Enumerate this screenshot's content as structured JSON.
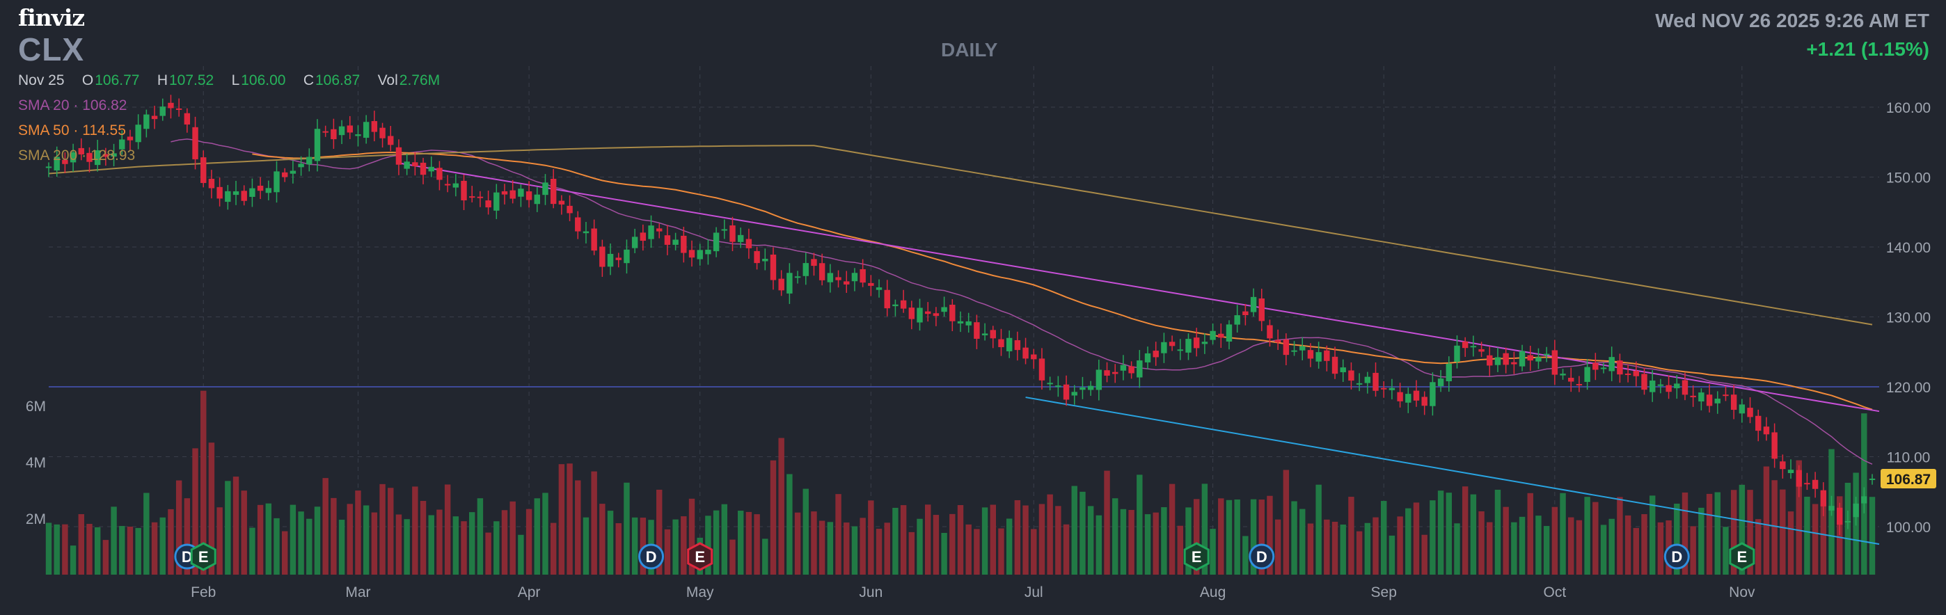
{
  "header": {
    "logo": "finviz",
    "ticker": "CLX",
    "timeframe": "DAILY",
    "datetime": "Wed NOV 26 2025 9:26 AM ET",
    "change": "+1.21 (1.15%)"
  },
  "ohlc": {
    "date": "Nov 25",
    "open_label": "O",
    "open": "106.77",
    "high_label": "H",
    "high": "107.52",
    "low_label": "L",
    "low": "106.00",
    "close_label": "C",
    "close": "106.87",
    "vol_label": "Vol",
    "vol": "2.76M"
  },
  "indicators": {
    "sma20": {
      "label": "SMA 20",
      "value": "106.82",
      "color": "#a34fa0"
    },
    "sma50": {
      "label": "SMA 50",
      "value": "114.55",
      "color": "#f08a3a"
    },
    "sma200": {
      "label": "SMA 200",
      "value": "128.93",
      "color": "#a98a48"
    }
  },
  "chart_data": {
    "type": "candlestick",
    "price_axis": {
      "ticks": [
        100,
        110,
        120,
        130,
        140,
        150,
        160
      ],
      "tick_labels": [
        "100.00",
        "110.00",
        "120.00",
        "130.00",
        "140.00",
        "150.00",
        "160.00"
      ],
      "range": [
        95,
        164
      ]
    },
    "volume_axis": {
      "ticks": [
        2,
        4,
        6
      ],
      "tick_labels": [
        "2M",
        "4M",
        "6M"
      ],
      "unit": "M"
    },
    "months": [
      "Feb",
      "Mar",
      "Apr",
      "May",
      "Jun",
      "Jul",
      "Aug",
      "Sep",
      "Oct",
      "Nov"
    ],
    "last_price_label": "106.87",
    "horizontal_line": 120,
    "anchors": [
      [
        "2025-01-06",
        151.5,
        1.6
      ],
      [
        "2025-01-17",
        154.5,
        1.8
      ],
      [
        "2025-01-24",
        159,
        2.2
      ],
      [
        "2025-01-29",
        161,
        2.5
      ],
      [
        "2025-02-03",
        149,
        6.0
      ],
      [
        "2025-02-04",
        147,
        3.8
      ],
      [
        "2025-02-12",
        148.5,
        2.2
      ],
      [
        "2025-02-20",
        151,
        2.0
      ],
      [
        "2025-02-24",
        157,
        2.8
      ],
      [
        "2025-03-03",
        156,
        2.4
      ],
      [
        "2025-03-05",
        157,
        2.9
      ],
      [
        "2025-03-11",
        152,
        2.4
      ],
      [
        "2025-03-14",
        150,
        2.6
      ],
      [
        "2025-03-25",
        146.5,
        2.0
      ],
      [
        "2025-04-01",
        147.5,
        2.2
      ],
      [
        "2025-04-03",
        149,
        2.6
      ],
      [
        "2025-04-08",
        144,
        3.6
      ],
      [
        "2025-04-14",
        138,
        2.5
      ],
      [
        "2025-04-23",
        142,
        2.2
      ],
      [
        "2025-05-01",
        139,
        2.0
      ],
      [
        "2025-05-05",
        141.5,
        2.1
      ],
      [
        "2025-05-08",
        141,
        2.0
      ],
      [
        "2025-05-13",
        138,
        2.0
      ],
      [
        "2025-05-15",
        134,
        4.5
      ],
      [
        "2025-05-20",
        137,
        2.3
      ],
      [
        "2025-05-30",
        135,
        2.0
      ],
      [
        "2025-06-04",
        132,
        2.1
      ],
      [
        "2025-06-18",
        129,
        2.0
      ],
      [
        "2025-06-27",
        125,
        2.2
      ],
      [
        "2025-07-03",
        121,
        2.4
      ],
      [
        "2025-07-09",
        118.5,
        2.6
      ],
      [
        "2025-07-15",
        122,
        2.8
      ],
      [
        "2025-07-25",
        125.5,
        2.4
      ],
      [
        "2025-08-01",
        127.5,
        2.6
      ],
      [
        "2025-08-05",
        128,
        2.4
      ],
      [
        "2025-08-08",
        132,
        2.2
      ],
      [
        "2025-08-13",
        126,
        3.0
      ],
      [
        "2025-08-15",
        125,
        2.6
      ],
      [
        "2025-08-20",
        124,
        2.3
      ],
      [
        "2025-08-25",
        122.5,
        2.0
      ],
      [
        "2025-09-02",
        119,
        2.0
      ],
      [
        "2025-09-09",
        118.5,
        2.2
      ],
      [
        "2025-09-12",
        123,
        2.8
      ],
      [
        "2025-09-16",
        126,
        2.6
      ],
      [
        "2025-09-23",
        123.5,
        2.3
      ],
      [
        "2025-09-30",
        124,
        2.2
      ],
      [
        "2025-10-03",
        121,
        2.4
      ],
      [
        "2025-10-10",
        123,
        2.2
      ],
      [
        "2025-10-15",
        121.5,
        2.1
      ],
      [
        "2025-10-22",
        119,
        2.3
      ],
      [
        "2025-10-30",
        118.5,
        2.6
      ],
      [
        "2025-11-05",
        114,
        3.0
      ],
      [
        "2025-11-10",
        109,
        3.2
      ],
      [
        "2025-11-14",
        104.5,
        2.8
      ],
      [
        "2025-11-19",
        100.5,
        3.4
      ],
      [
        "2025-11-21",
        103,
        3.8
      ],
      [
        "2025-11-24",
        105.5,
        4.2
      ],
      [
        "2025-11-25",
        106.87,
        2.76
      ]
    ],
    "last_bar": {
      "date": "2025-11-25",
      "open": 106.77,
      "high": 107.52,
      "low": 106.0,
      "close": 106.87,
      "volume": 2.76
    },
    "trendlines": [
      {
        "name": "upper-resistance",
        "color": "#c850d8",
        "from": [
          "2025-03-10",
          152
        ],
        "to": [
          "2025-11-26",
          116.5
        ]
      },
      {
        "name": "lower-support",
        "color": "#29a3e0",
        "from": [
          "2025-06-30",
          118.5
        ],
        "to": [
          "2025-11-26",
          97.5
        ]
      }
    ],
    "events": [
      {
        "date": "2025-01-30",
        "label": "D",
        "type": "dividend"
      },
      {
        "date": "2025-02-03",
        "label": "E",
        "type": "earnings-positive"
      },
      {
        "date": "2025-04-23",
        "label": "D",
        "type": "dividend"
      },
      {
        "date": "2025-05-01",
        "label": "E",
        "type": "earnings-negative"
      },
      {
        "date": "2025-07-30",
        "label": "E",
        "type": "earnings-positive"
      },
      {
        "date": "2025-08-11",
        "label": "D",
        "type": "dividend"
      },
      {
        "date": "2025-10-22",
        "label": "D",
        "type": "dividend"
      },
      {
        "date": "2025-11-03",
        "label": "E",
        "type": "earnings-positive"
      }
    ],
    "colors": {
      "bg": "#22262f",
      "grid": "#3a3f4b",
      "up": "#26a65b",
      "down": "#e0283e",
      "vol_up": "#217a45",
      "vol_down": "#8a2a34",
      "hline": "#3e4a9a",
      "axis_text": "#a0a6b1",
      "last_price_bg": "#f0c23a",
      "event_d": "#2f8fe0",
      "event_e_pos": "#1fa55a",
      "event_e_neg": "#e0283e"
    }
  }
}
